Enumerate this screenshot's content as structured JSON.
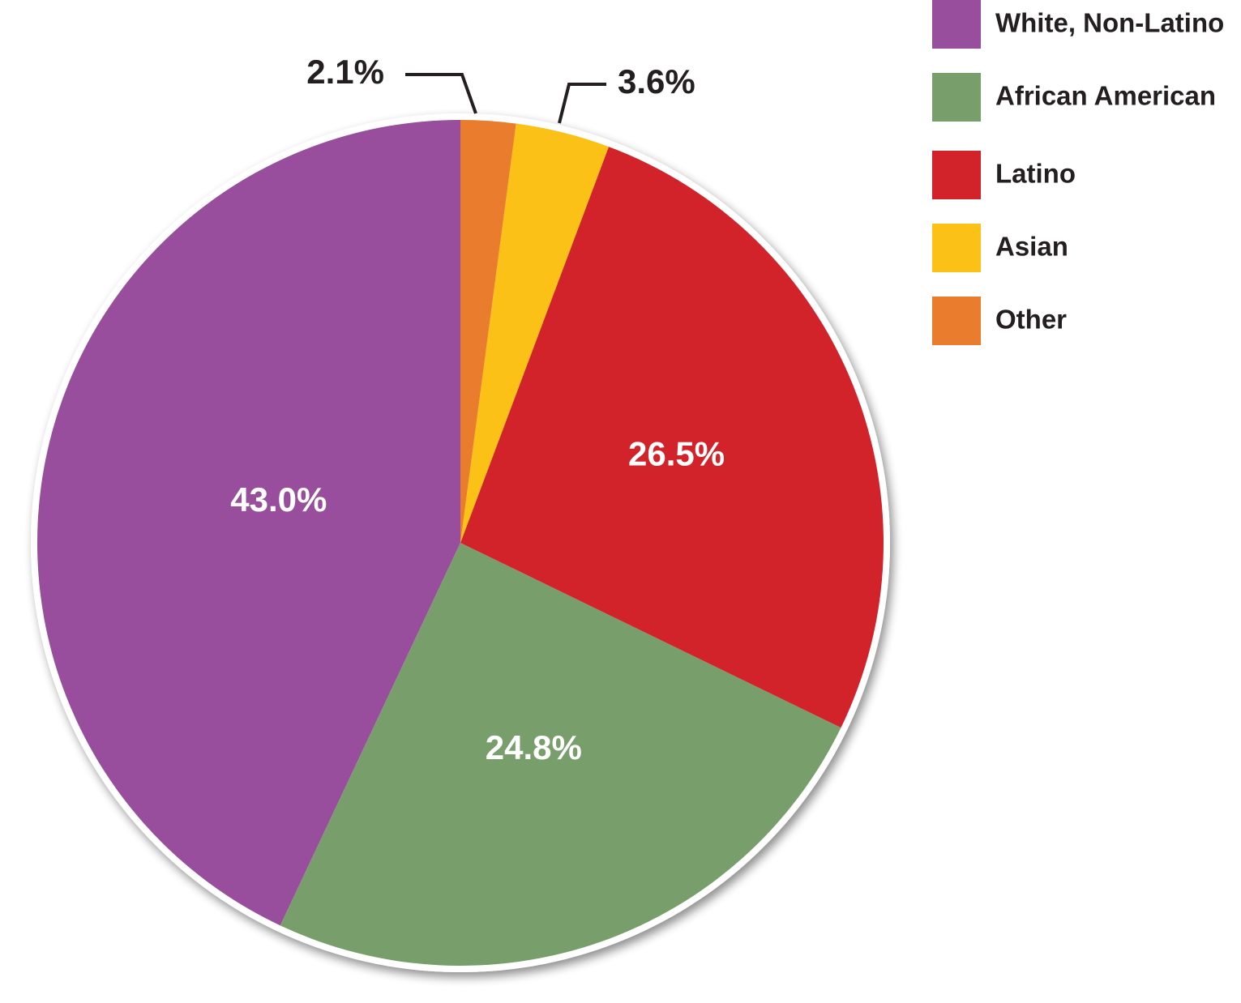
{
  "chart_data": {
    "type": "pie",
    "title": "",
    "legend_position": "top-right",
    "slices": [
      {
        "name": "White, Non-Latino",
        "value": 43.0,
        "label": "43.0%",
        "color": "#984e9c"
      },
      {
        "name": "African American",
        "value": 24.8,
        "label": "24.8%",
        "color": "#789e6b"
      },
      {
        "name": "Latino",
        "value": 26.5,
        "label": "26.5%",
        "color": "#d2232a"
      },
      {
        "name": "Asian",
        "value": 3.6,
        "label": "3.6%",
        "color": "#fcc116"
      },
      {
        "name": "Other",
        "value": 2.1,
        "label": "2.1%",
        "color": "#ea7d2d"
      }
    ],
    "legend": [
      {
        "label": "White, Non-Latino",
        "color": "#984e9c"
      },
      {
        "label": "African American",
        "color": "#789e6b"
      },
      {
        "label": "Latino",
        "color": "#d2232a"
      },
      {
        "label": "Asian",
        "color": "#fcc116"
      },
      {
        "label": "Other",
        "color": "#ea7d2d"
      }
    ]
  }
}
